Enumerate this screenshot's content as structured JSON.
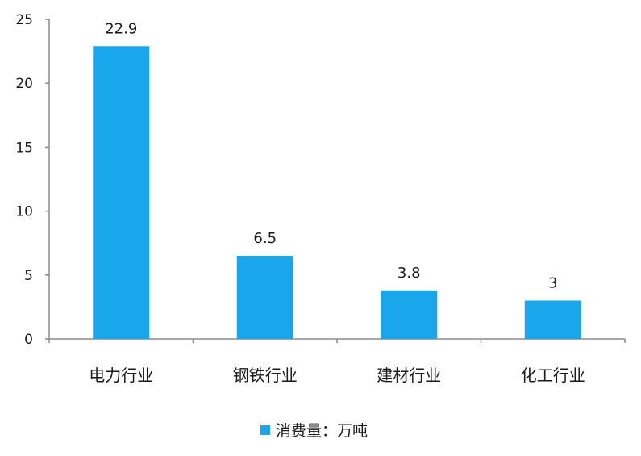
{
  "chart_data": {
    "type": "bar",
    "categories": [
      "电力行业",
      "钢铁行业",
      "建材行业",
      "化工行业"
    ],
    "series": [
      {
        "name": "消费量：万吨",
        "values": [
          22.9,
          6.5,
          3.8,
          3
        ],
        "data_labels": [
          "22.9",
          "6.5",
          "3.8",
          "3"
        ]
      }
    ],
    "ylim": [
      0,
      25
    ],
    "yticks": [
      0,
      5,
      10,
      15,
      20,
      25
    ],
    "ytick_labels": [
      "0",
      "5",
      "10",
      "15",
      "20",
      "25"
    ],
    "grid": false,
    "legend_position": "bottom",
    "colors": {
      "bar": "#1aa6ea",
      "axis": "#8c8c8c"
    }
  }
}
